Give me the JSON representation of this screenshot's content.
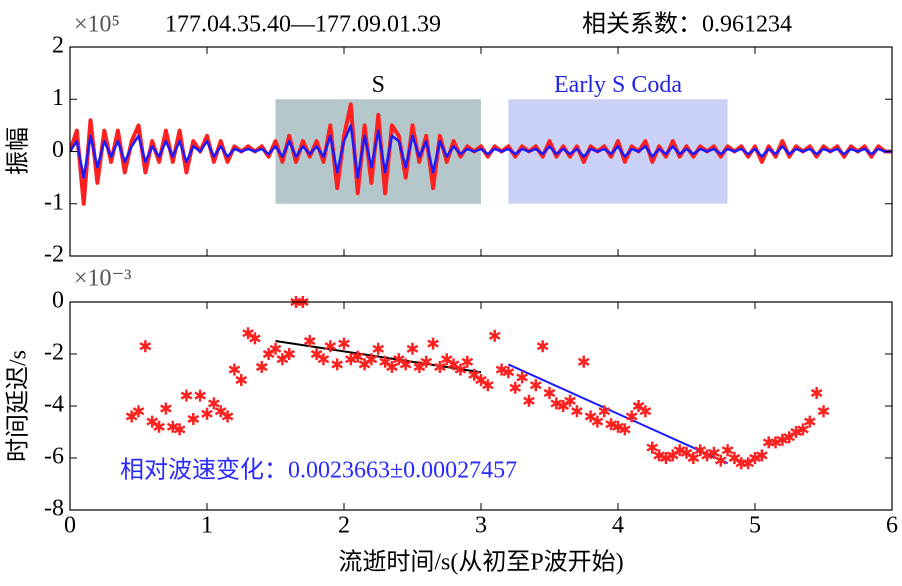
{
  "chart_data": [
    {
      "type": "line",
      "title": "177.04.35.40—177.09.01.39",
      "subtitle": "相关系数：0.961234",
      "y_multiplier": "×10⁵",
      "ylabel": "振幅",
      "xlim": [
        0,
        6
      ],
      "xticks": [
        0,
        1,
        2,
        3,
        4,
        5,
        6
      ],
      "show_xtick_labels": false,
      "ylim": [
        -2,
        2
      ],
      "yticks": [
        -2,
        -1,
        0,
        1,
        2
      ],
      "regions": [
        {
          "label": "S",
          "x": [
            1.5,
            3.0
          ],
          "y": [
            -1,
            1
          ],
          "color": "#b4c8cc",
          "label_color": "#000000"
        },
        {
          "label": "Early S Coda",
          "x": [
            3.2,
            4.8
          ],
          "y": [
            -1,
            1
          ],
          "color": "#c9d1f7",
          "label_color": "#2424e6"
        }
      ],
      "x": [
        0,
        0.05,
        0.1,
        0.15,
        0.2,
        0.25,
        0.3,
        0.35,
        0.4,
        0.45,
        0.5,
        0.55,
        0.6,
        0.65,
        0.7,
        0.75,
        0.8,
        0.85,
        0.9,
        0.95,
        1,
        1.05,
        1.1,
        1.15,
        1.2,
        1.25,
        1.3,
        1.35,
        1.4,
        1.45,
        1.5,
        1.55,
        1.6,
        1.65,
        1.7,
        1.75,
        1.8,
        1.85,
        1.9,
        1.95,
        2,
        2.05,
        2.1,
        2.15,
        2.2,
        2.25,
        2.3,
        2.35,
        2.4,
        2.45,
        2.5,
        2.55,
        2.6,
        2.65,
        2.7,
        2.75,
        2.8,
        2.85,
        2.9,
        2.95,
        3,
        3.05,
        3.1,
        3.15,
        3.2,
        3.25,
        3.3,
        3.35,
        3.4,
        3.45,
        3.5,
        3.55,
        3.6,
        3.65,
        3.7,
        3.75,
        3.8,
        3.85,
        3.9,
        3.95,
        4,
        4.05,
        4.1,
        4.15,
        4.2,
        4.25,
        4.3,
        4.35,
        4.4,
        4.45,
        4.5,
        4.55,
        4.6,
        4.65,
        4.7,
        4.75,
        4.8,
        4.85,
        4.9,
        4.95,
        5,
        5.05,
        5.1,
        5.15,
        5.2,
        5.25,
        5.3,
        5.35,
        5.4,
        5.45,
        5.5,
        5.55,
        5.6,
        5.65,
        5.7,
        5.75,
        5.8,
        5.85,
        5.9,
        5.95,
        6
      ],
      "series": [
        {
          "color": "#ff2020",
          "width": 4,
          "values": [
            0,
            0.4,
            -1.0,
            0.6,
            -0.6,
            0.4,
            -0.2,
            0.4,
            -0.4,
            0.2,
            0.5,
            -0.4,
            0.2,
            -0.2,
            0.4,
            -0.2,
            0.4,
            -0.4,
            0.2,
            0,
            0.3,
            -0.2,
            0.2,
            -0.2,
            0.1,
            0,
            0.1,
            0,
            0.1,
            -0.1,
            0.2,
            -0.2,
            0.3,
            -0.2,
            0.2,
            -0.1,
            0.2,
            -0.2,
            0.5,
            -0.7,
            0.3,
            0.9,
            -0.8,
            0.5,
            -0.6,
            0.7,
            -0.8,
            0.5,
            0.3,
            -0.5,
            0.5,
            -0.2,
            0.3,
            -0.7,
            0.3,
            -0.2,
            0.2,
            -0.1,
            0.1,
            0,
            0.1,
            -0.1,
            0.1,
            0,
            0.1,
            -0.1,
            0.1,
            0,
            0.1,
            -0.1,
            0.2,
            -0.1,
            0.1,
            -0.1,
            0.1,
            -0.2,
            0.1,
            0,
            0.1,
            -0.1,
            0.2,
            -0.2,
            0.1,
            0,
            0.2,
            -0.2,
            0.1,
            -0.1,
            0.2,
            -0.1,
            0.1,
            -0.1,
            0.1,
            0,
            0.1,
            -0.1,
            0.1,
            0,
            0.1,
            -0.1,
            0.1,
            -0.2,
            0.1,
            -0.1,
            0.2,
            -0.1,
            0.1,
            0,
            0.1,
            -0.1,
            0.1,
            0,
            0.1,
            -0.1,
            0.1,
            0,
            0.1,
            -0.1,
            0.1,
            0,
            0
          ]
        },
        {
          "color": "#1a1aff",
          "width": 2.5,
          "values": [
            0,
            0.2,
            -0.5,
            0.3,
            -0.3,
            0.2,
            -0.1,
            0.2,
            -0.2,
            0.1,
            0.3,
            -0.2,
            0.1,
            -0.1,
            0.2,
            -0.1,
            0.2,
            -0.2,
            0.1,
            0,
            0.2,
            -0.1,
            0.1,
            -0.1,
            0.05,
            0,
            0.05,
            0,
            0.05,
            -0.05,
            0.1,
            -0.1,
            0.2,
            -0.1,
            0.1,
            -0.05,
            0.1,
            -0.1,
            0.3,
            -0.4,
            0.2,
            0.5,
            -0.5,
            0.3,
            -0.3,
            0.4,
            -0.4,
            0.3,
            0.2,
            -0.3,
            0.3,
            -0.1,
            0.2,
            -0.4,
            0.2,
            -0.1,
            0.1,
            -0.05,
            0.05,
            0,
            0.05,
            -0.05,
            0.05,
            0,
            0.05,
            -0.05,
            0.05,
            0,
            0.05,
            -0.05,
            0.1,
            -0.05,
            0.05,
            -0.05,
            0.05,
            -0.1,
            0.05,
            0,
            0.05,
            -0.05,
            0.1,
            -0.1,
            0.05,
            0,
            0.1,
            -0.1,
            0.05,
            -0.05,
            0.1,
            -0.05,
            0.05,
            -0.05,
            0.05,
            0,
            0.05,
            -0.05,
            0.05,
            0,
            0.05,
            -0.05,
            0.05,
            -0.1,
            0.05,
            -0.05,
            0.1,
            -0.05,
            0.05,
            0,
            0.05,
            -0.05,
            0.05,
            0,
            0.05,
            -0.05,
            0.05,
            0,
            0.05,
            -0.05,
            0.05,
            0,
            0
          ]
        }
      ]
    },
    {
      "type": "scatter",
      "y_multiplier": "×10⁻³",
      "ylabel": "时间延迟/s",
      "xlabel": "流逝时间/s(从初至P波开始)",
      "xlim": [
        0,
        6
      ],
      "xticks": [
        0,
        1,
        2,
        3,
        4,
        5,
        6
      ],
      "show_xtick_labels": true,
      "ylim": [
        -8,
        0
      ],
      "yticks": [
        -8,
        -6,
        -4,
        -2,
        0
      ],
      "color": "#ff2020",
      "annotation": "相对波速变化：0.0023663±0.00027457",
      "annotation_color": "#2a2aff",
      "x": [
        0.45,
        0.5,
        0.55,
        0.6,
        0.65,
        0.7,
        0.75,
        0.8,
        0.85,
        0.9,
        0.95,
        1.0,
        1.05,
        1.1,
        1.15,
        1.2,
        1.25,
        1.3,
        1.35,
        1.4,
        1.45,
        1.5,
        1.55,
        1.6,
        1.65,
        1.7,
        1.75,
        1.8,
        1.85,
        1.9,
        1.95,
        2.0,
        2.05,
        2.1,
        2.15,
        2.2,
        2.25,
        2.3,
        2.35,
        2.4,
        2.45,
        2.5,
        2.55,
        2.6,
        2.65,
        2.7,
        2.75,
        2.8,
        2.85,
        2.9,
        2.95,
        3.0,
        3.05,
        3.1,
        3.15,
        3.2,
        3.25,
        3.3,
        3.35,
        3.4,
        3.45,
        3.5,
        3.55,
        3.6,
        3.65,
        3.7,
        3.75,
        3.8,
        3.85,
        3.9,
        3.95,
        4.0,
        4.05,
        4.1,
        4.15,
        4.2,
        4.25,
        4.3,
        4.35,
        4.4,
        4.45,
        4.5,
        4.55,
        4.6,
        4.65,
        4.7,
        4.75,
        4.8,
        4.85,
        4.9,
        4.95,
        5.0,
        5.05,
        5.1,
        5.15,
        5.2,
        5.25,
        5.3,
        5.35,
        5.4,
        5.45,
        5.5
      ],
      "values": [
        -4.4,
        -4.2,
        -1.7,
        -4.6,
        -4.8,
        -4.1,
        -4.8,
        -4.9,
        -3.6,
        -4.5,
        -3.6,
        -4.3,
        -3.9,
        -4.2,
        -4.4,
        -2.6,
        -3.0,
        -1.2,
        -1.4,
        -2.5,
        -2.0,
        -1.8,
        -2.2,
        -2.0,
        0,
        0,
        -1.5,
        -2.0,
        -2.2,
        -1.7,
        -2.4,
        -1.6,
        -2.2,
        -2.1,
        -2.4,
        -2.2,
        -1.8,
        -2.3,
        -2.5,
        -2.2,
        -2.4,
        -1.8,
        -2.5,
        -2.3,
        -1.6,
        -2.5,
        -2.2,
        -2.4,
        -2.6,
        -2.3,
        -2.8,
        -3.0,
        -3.2,
        -1.3,
        -2.6,
        -2.7,
        -3.3,
        -2.9,
        -3.8,
        -3.2,
        -1.7,
        -3.5,
        -3.9,
        -4.0,
        -3.8,
        -4.2,
        -2.3,
        -4.4,
        -4.6,
        -4.2,
        -4.7,
        -4.8,
        -4.9,
        -4.4,
        -4.0,
        -4.2,
        -5.6,
        -5.9,
        -6.0,
        -5.9,
        -5.7,
        -5.8,
        -6.0,
        -5.7,
        -5.9,
        -5.8,
        -6.1,
        -5.7,
        -6.0,
        -6.2,
        -6.2,
        -6.0,
        -5.9,
        -5.4,
        -5.4,
        -5.3,
        -5.2,
        -5.0,
        -4.9,
        -4.6,
        -3.5,
        -4.2
      ],
      "fits": [
        {
          "x": [
            1.5,
            3.0
          ],
          "y": [
            -1.5,
            -2.7
          ],
          "color": "#000000"
        },
        {
          "x": [
            3.2,
            4.8
          ],
          "y": [
            -2.4,
            -6.2
          ],
          "color": "#1a1aff"
        }
      ]
    }
  ]
}
